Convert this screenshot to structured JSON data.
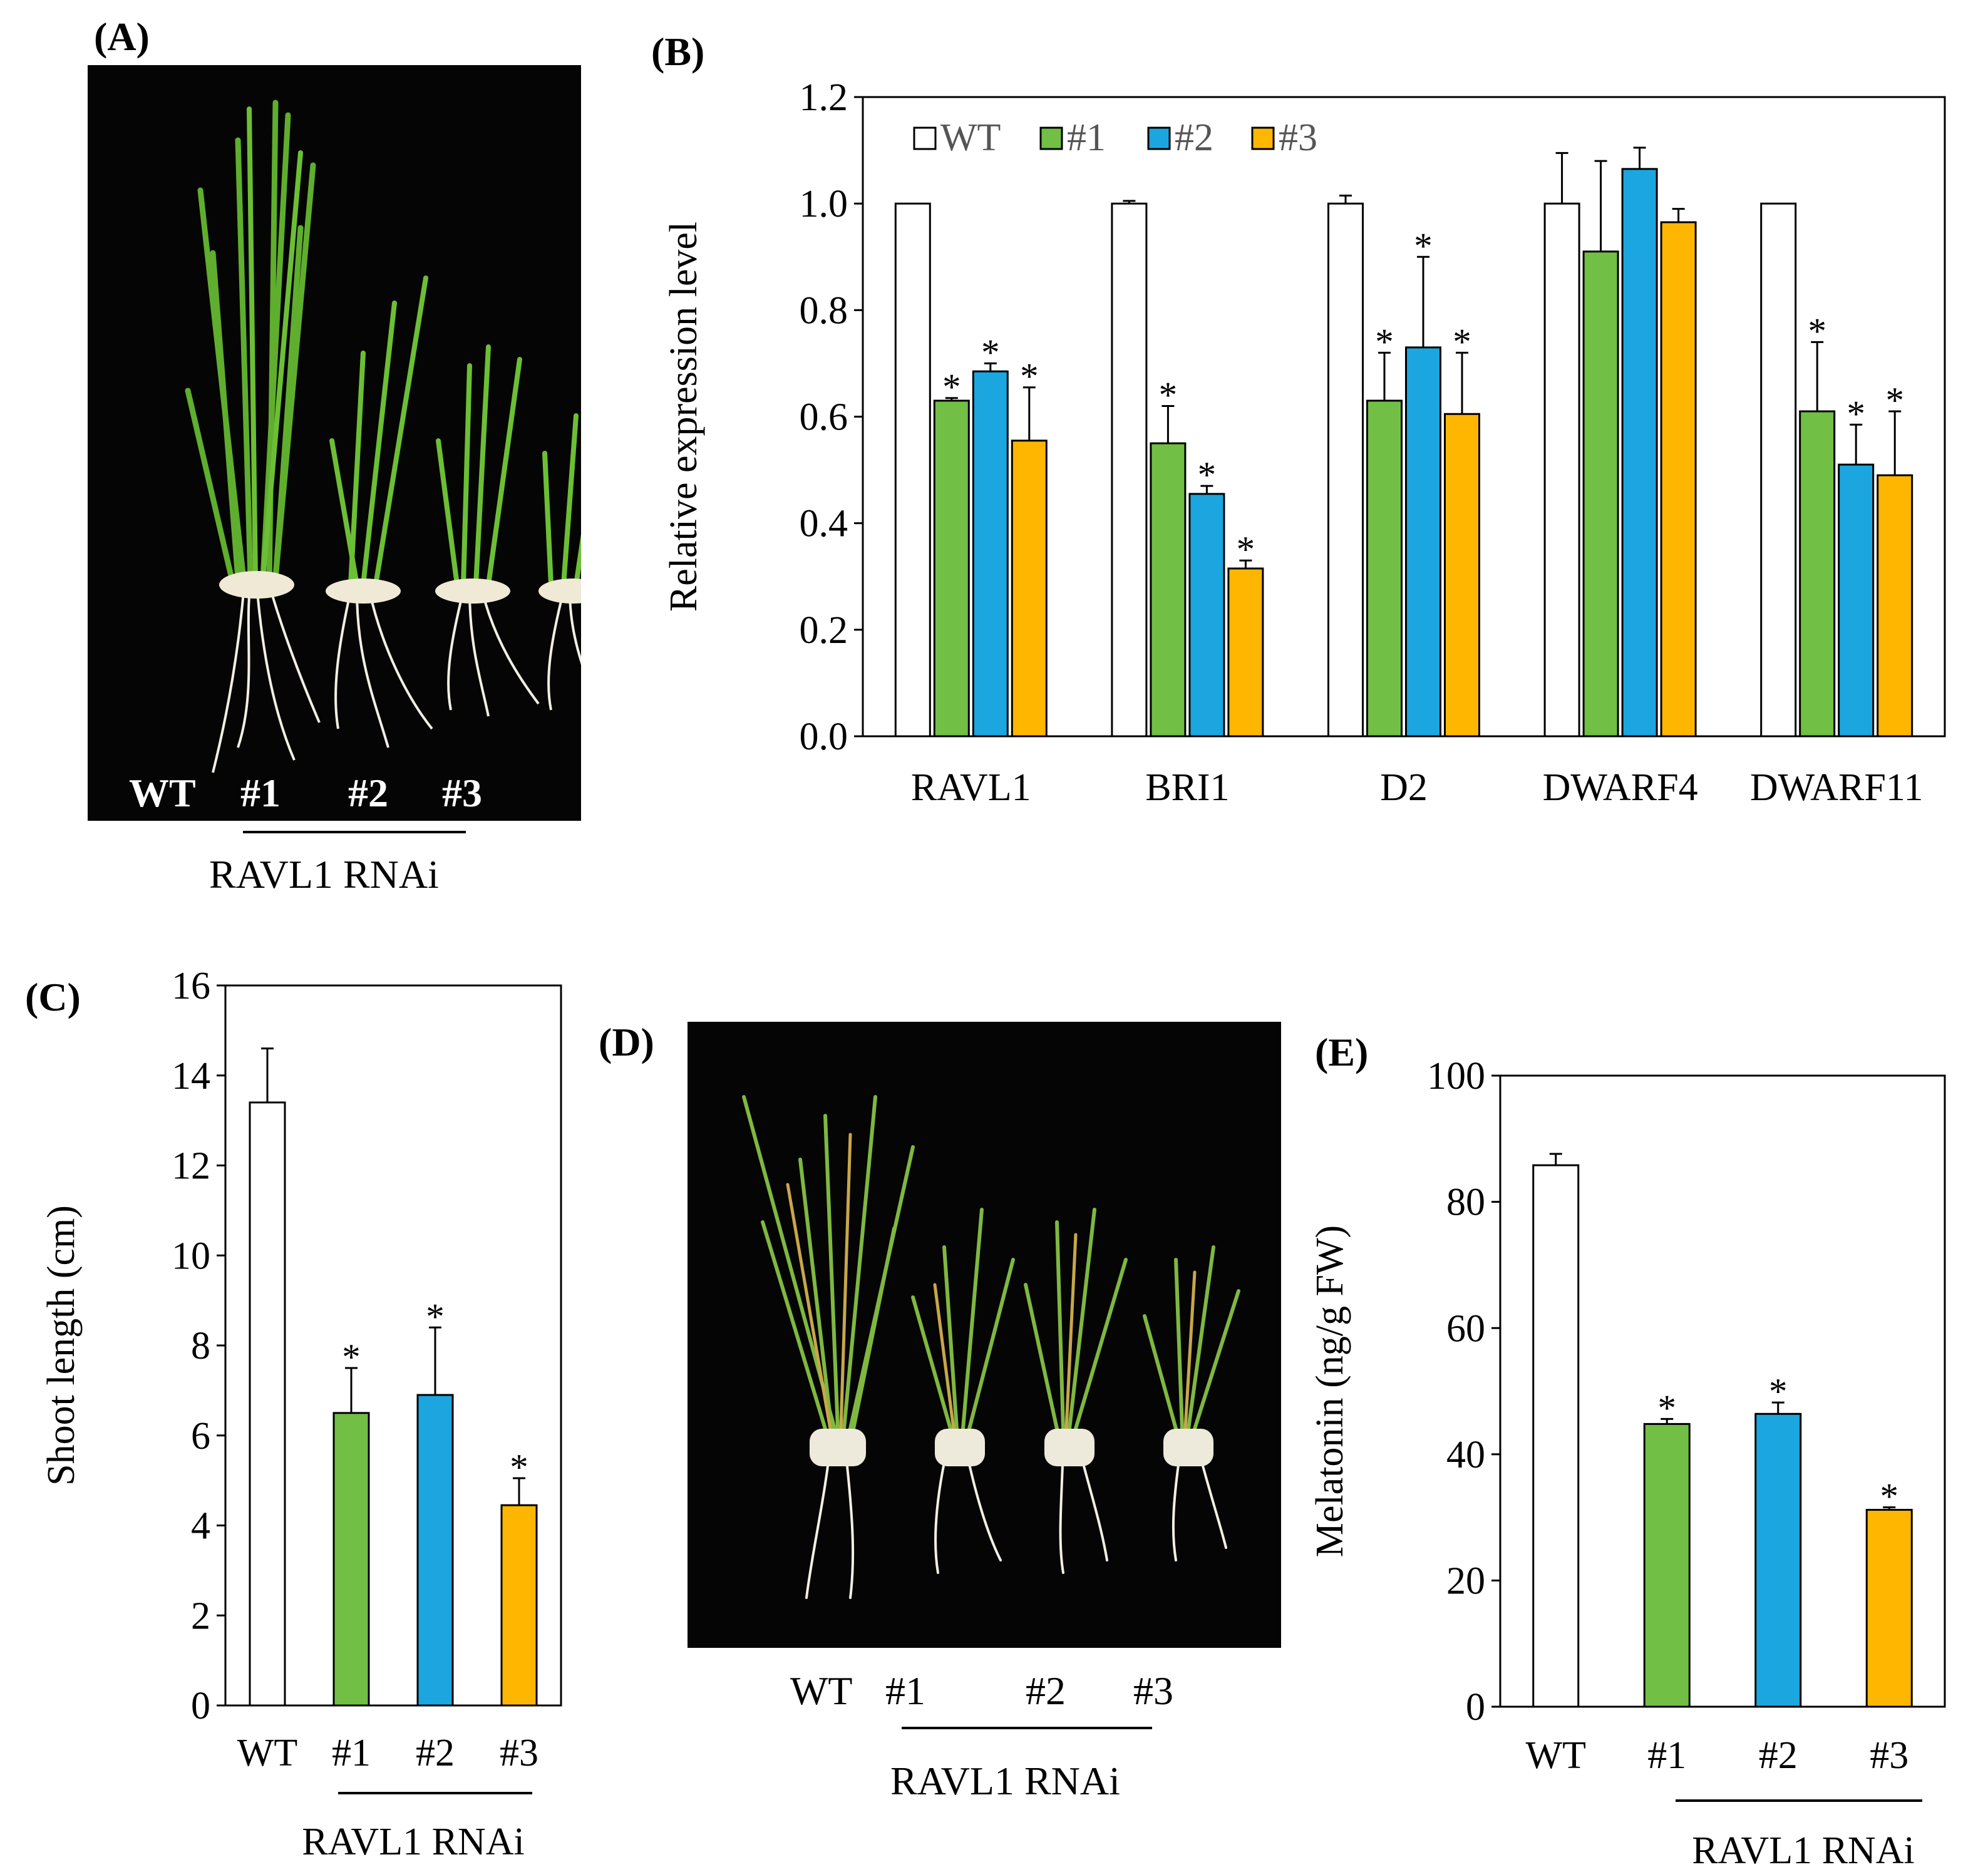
{
  "panels": {
    "a": {
      "label": "(A)",
      "lines": [
        "WT",
        "#1",
        "#2",
        "#3"
      ],
      "group": "RAVL1 RNAi",
      "image": "rice-seedlings-photo"
    },
    "b": {
      "label": "(B)"
    },
    "c": {
      "label": "(C)"
    },
    "d": {
      "label": "(D)",
      "lines": [
        "WT",
        "#1",
        "#2",
        "#3"
      ],
      "group": "RAVL1 RNAi",
      "image": "rice-plants-photo"
    },
    "e": {
      "label": "(E)"
    }
  },
  "colors": {
    "WT": "#ffffff",
    "#1": "#71bf44",
    "#2": "#1ba6df",
    "#3": "#ffb600",
    "outline": "#000000"
  },
  "chart_data": [
    {
      "id": "b",
      "type": "bar",
      "title": "",
      "xlabel": "",
      "ylabel": "Relative expression level",
      "ylim": [
        0,
        1.2
      ],
      "ytick_step": 0.2,
      "ytick_decimals": 1,
      "categories": [
        "RAVL1",
        "BRI1",
        "D2",
        "DWARF4",
        "DWARF11"
      ],
      "legend": {
        "placement": "top-left",
        "entries": [
          "WT",
          "#1",
          "#2",
          "#3"
        ]
      },
      "series": [
        {
          "name": "WT",
          "color": "#ffffff",
          "values": [
            1.0,
            1.0,
            1.0,
            1.0,
            1.0
          ],
          "errors": [
            0,
            0.005,
            0.015,
            0.095,
            0
          ],
          "sig": [
            false,
            false,
            false,
            false,
            false
          ]
        },
        {
          "name": "#1",
          "color": "#71bf44",
          "values": [
            0.63,
            0.55,
            0.63,
            0.91,
            0.61
          ],
          "errors": [
            0.005,
            0.07,
            0.09,
            0.17,
            0.13
          ],
          "sig": [
            true,
            true,
            true,
            false,
            true
          ]
        },
        {
          "name": "#2",
          "color": "#1ba6df",
          "values": [
            0.685,
            0.455,
            0.73,
            1.065,
            0.51
          ],
          "errors": [
            0.015,
            0.015,
            0.17,
            0.04,
            0.075
          ],
          "sig": [
            true,
            true,
            true,
            false,
            true
          ]
        },
        {
          "name": "#3",
          "color": "#ffb600",
          "values": [
            0.555,
            0.315,
            0.605,
            0.965,
            0.49
          ],
          "errors": [
            0.1,
            0.015,
            0.115,
            0.025,
            0.12
          ],
          "sig": [
            true,
            true,
            true,
            false,
            true
          ]
        }
      ],
      "sig_marker": "*"
    },
    {
      "id": "c",
      "type": "bar",
      "title": "",
      "xlabel": "",
      "ylabel": "Shoot length (cm)",
      "ylim": [
        0,
        16
      ],
      "ytick_step": 2,
      "ytick_decimals": 0,
      "categories": [
        "WT",
        "#1",
        "#2",
        "#3"
      ],
      "colors": [
        "#ffffff",
        "#71bf44",
        "#1ba6df",
        "#ffb600"
      ],
      "values": [
        13.4,
        6.5,
        6.9,
        4.45
      ],
      "errors": [
        1.2,
        1.0,
        1.5,
        0.6
      ],
      "sig": [
        false,
        true,
        true,
        true
      ],
      "sig_marker": "*",
      "group_label": "RAVL1 RNAi"
    },
    {
      "id": "e",
      "type": "bar",
      "title": "",
      "xlabel": "",
      "ylabel": "Melatonin (ng/g FW)",
      "ylim": [
        0,
        100
      ],
      "ytick_step": 20,
      "ytick_decimals": 0,
      "categories": [
        "WT",
        "#1",
        "#2",
        "#3"
      ],
      "colors": [
        "#ffffff",
        "#71bf44",
        "#1ba6df",
        "#ffb600"
      ],
      "values": [
        85.8,
        44.8,
        46.4,
        31.2
      ],
      "errors": [
        1.8,
        0.8,
        1.8,
        0.4
      ],
      "sig": [
        false,
        true,
        true,
        true
      ],
      "sig_marker": "*",
      "group_label": "RAVL1 RNAi"
    }
  ]
}
